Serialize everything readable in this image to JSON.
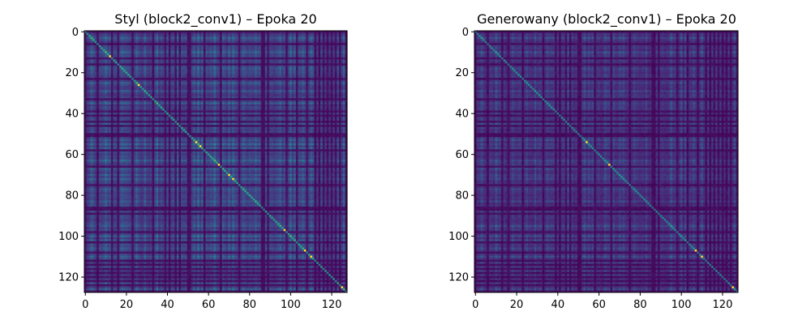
{
  "chart_data": [
    {
      "type": "heatmap",
      "title": "Styl (block2_conv1) – Epoka 20",
      "xlabel": "",
      "ylabel": "",
      "size": 128,
      "xlim": [
        0,
        127
      ],
      "ylim": [
        127,
        0
      ],
      "xticks": [
        0,
        20,
        40,
        60,
        80,
        100,
        120
      ],
      "yticks": [
        0,
        20,
        40,
        60,
        80,
        100,
        120
      ],
      "colormap": "viridis",
      "value_range": [
        0,
        1
      ],
      "diagonal_value": 0.55,
      "bright_diagonal_points": [
        12,
        26,
        54,
        56,
        65,
        70,
        72,
        97,
        107,
        110,
        125
      ],
      "dark_bands": [
        0,
        6,
        13,
        16,
        23,
        33,
        39,
        41,
        44,
        46,
        50,
        51,
        58,
        66,
        75,
        86,
        87,
        89,
        98,
        103,
        108,
        112,
        114,
        116,
        118,
        120,
        122,
        124,
        127
      ],
      "bright_bands": [
        3,
        10,
        18,
        25,
        29,
        35,
        45,
        53,
        55,
        57,
        63,
        67,
        70,
        72,
        77,
        83,
        95,
        100,
        102,
        106,
        110,
        126
      ],
      "base_level": 0.24
    },
    {
      "type": "heatmap",
      "title": "Generowany (block2_conv1) – Epoka 20",
      "xlabel": "",
      "ylabel": "",
      "size": 128,
      "xlim": [
        0,
        127
      ],
      "ylim": [
        127,
        0
      ],
      "xticks": [
        0,
        20,
        40,
        60,
        80,
        100,
        120
      ],
      "yticks": [
        0,
        20,
        40,
        60,
        80,
        100,
        120
      ],
      "colormap": "viridis",
      "value_range": [
        0,
        1
      ],
      "diagonal_value": 0.45,
      "bright_diagonal_points": [
        54,
        65,
        107,
        110,
        125
      ],
      "dark_bands": [
        0,
        6,
        13,
        16,
        23,
        33,
        39,
        41,
        44,
        46,
        50,
        51,
        58,
        66,
        75,
        86,
        87,
        89,
        98,
        103,
        108,
        112,
        114,
        116,
        118,
        120,
        122,
        124,
        127
      ],
      "bright_bands": [
        3,
        10,
        18,
        25,
        29,
        35,
        45,
        53,
        55,
        57,
        63,
        67,
        70,
        72,
        77,
        83,
        95,
        100,
        102,
        106,
        110,
        126
      ],
      "base_level": 0.17
    }
  ]
}
